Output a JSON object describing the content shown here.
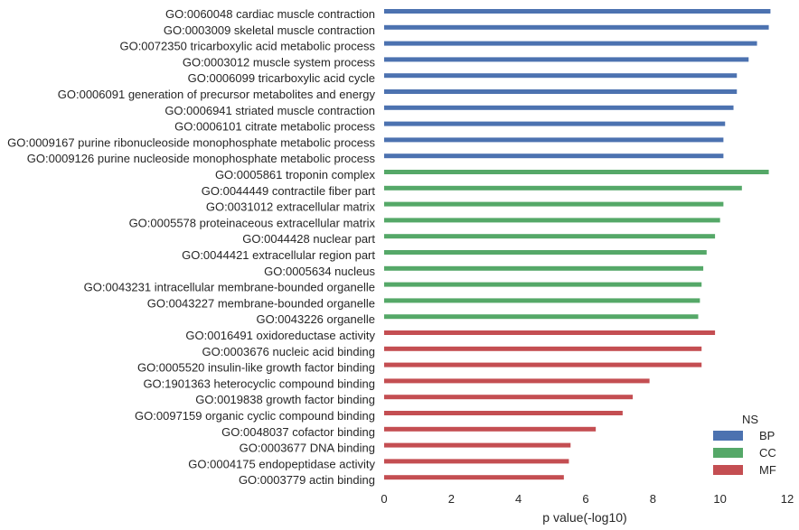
{
  "chart_data": {
    "type": "bar",
    "orientation": "horizontal",
    "xlabel": "p value(-log10)",
    "ylabel": "",
    "xlim": [
      0,
      12
    ],
    "xticks": [
      0,
      2,
      4,
      6,
      8,
      10,
      12
    ],
    "grid": false,
    "legend": {
      "title": "NS",
      "placement": "bottom-right",
      "entries": [
        "BP",
        "CC",
        "MF"
      ]
    },
    "colors": {
      "BP": "#4c72b0",
      "CC": "#55a868",
      "MF": "#c44e52"
    },
    "bars": [
      {
        "label": "GO:0060048 cardiac muscle contraction",
        "ns": "BP",
        "value": 11.5
      },
      {
        "label": "GO:0003009 skeletal muscle contraction",
        "ns": "BP",
        "value": 11.45
      },
      {
        "label": "GO:0072350 tricarboxylic acid metabolic process",
        "ns": "BP",
        "value": 11.1
      },
      {
        "label": "GO:0003012 muscle system process",
        "ns": "BP",
        "value": 10.85
      },
      {
        "label": "GO:0006099 tricarboxylic acid cycle",
        "ns": "BP",
        "value": 10.5
      },
      {
        "label": "GO:0006091 generation of precursor metabolites and energy",
        "ns": "BP",
        "value": 10.5
      },
      {
        "label": "GO:0006941 striated muscle contraction",
        "ns": "BP",
        "value": 10.4
      },
      {
        "label": "GO:0006101 citrate metabolic process",
        "ns": "BP",
        "value": 10.15
      },
      {
        "label": "GO:0009167 purine ribonucleoside monophosphate metabolic process",
        "ns": "BP",
        "value": 10.1
      },
      {
        "label": "GO:0009126 purine nucleoside monophosphate metabolic process",
        "ns": "BP",
        "value": 10.1
      },
      {
        "label": "GO:0005861 troponin complex",
        "ns": "CC",
        "value": 11.45
      },
      {
        "label": "GO:0044449 contractile fiber part",
        "ns": "CC",
        "value": 10.65
      },
      {
        "label": "GO:0031012 extracellular matrix",
        "ns": "CC",
        "value": 10.1
      },
      {
        "label": "GO:0005578 proteinaceous extracellular matrix",
        "ns": "CC",
        "value": 10.0
      },
      {
        "label": "GO:0044428 nuclear part",
        "ns": "CC",
        "value": 9.85
      },
      {
        "label": "GO:0044421 extracellular region part",
        "ns": "CC",
        "value": 9.6
      },
      {
        "label": "GO:0005634 nucleus",
        "ns": "CC",
        "value": 9.5
      },
      {
        "label": "GO:0043231 intracellular membrane-bounded organelle",
        "ns": "CC",
        "value": 9.45
      },
      {
        "label": "GO:0043227 membrane-bounded organelle",
        "ns": "CC",
        "value": 9.4
      },
      {
        "label": "GO:0043226 organelle",
        "ns": "CC",
        "value": 9.35
      },
      {
        "label": "GO:0016491 oxidoreductase activity",
        "ns": "MF",
        "value": 9.85
      },
      {
        "label": "GO:0003676 nucleic acid binding",
        "ns": "MF",
        "value": 9.45
      },
      {
        "label": "GO:0005520 insulin-like growth factor binding",
        "ns": "MF",
        "value": 9.45
      },
      {
        "label": "GO:1901363 heterocyclic compound binding",
        "ns": "MF",
        "value": 7.9
      },
      {
        "label": "GO:0019838 growth factor binding",
        "ns": "MF",
        "value": 7.4
      },
      {
        "label": "GO:0097159 organic cyclic compound binding",
        "ns": "MF",
        "value": 7.1
      },
      {
        "label": "GO:0048037 cofactor binding",
        "ns": "MF",
        "value": 6.3
      },
      {
        "label": "GO:0003677 DNA binding",
        "ns": "MF",
        "value": 5.55
      },
      {
        "label": "GO:0004175 endopeptidase activity",
        "ns": "MF",
        "value": 5.5
      },
      {
        "label": "GO:0003779 actin binding",
        "ns": "MF",
        "value": 5.35
      }
    ]
  }
}
